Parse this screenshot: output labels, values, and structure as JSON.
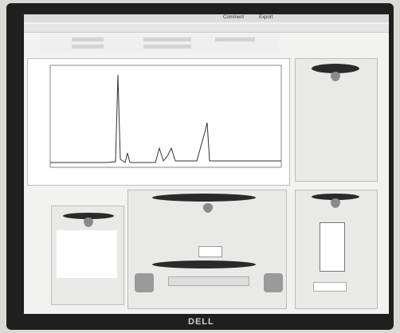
{
  "toolbar": {
    "comment": "Comment",
    "export": "Export"
  },
  "bezel": {
    "logo": "DELL"
  }
}
